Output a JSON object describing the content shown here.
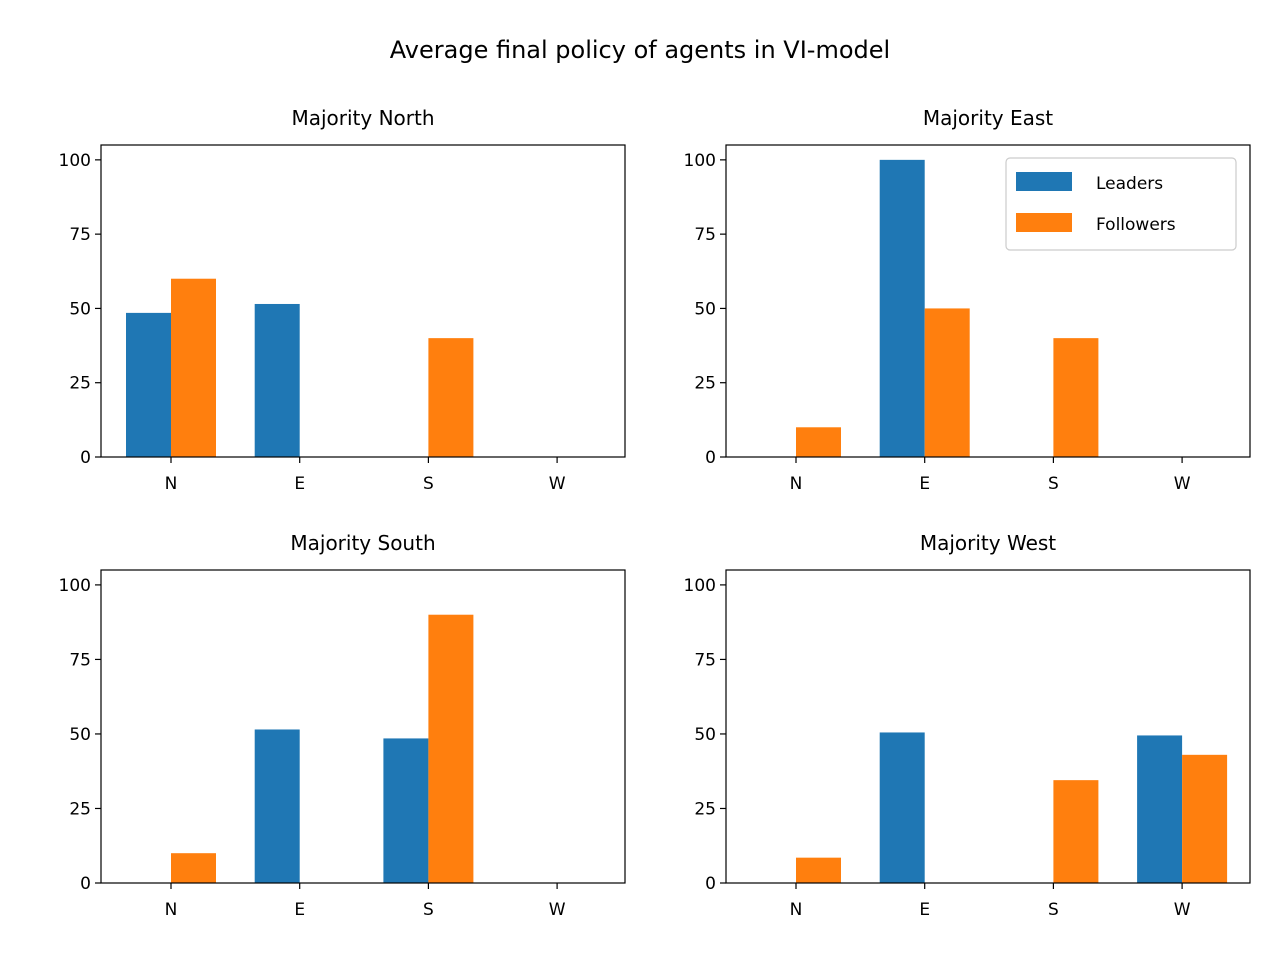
{
  "figure": {
    "title": "Average final policy of agents in VI-model"
  },
  "colors": {
    "Leaders": "#1f77b4",
    "Followers": "#ff7f0e",
    "axes": "#000000",
    "background": "#ffffff"
  },
  "chart_data": [
    {
      "type": "bar",
      "title": "Majority North",
      "categories": [
        "N",
        "E",
        "S",
        "W"
      ],
      "ylim": [
        0,
        105
      ],
      "yticks": [
        0,
        25,
        50,
        75,
        100
      ],
      "xlabel": "",
      "ylabel": "",
      "grid": false,
      "legend": null,
      "series": [
        {
          "name": "Leaders",
          "values": [
            48.5,
            51.5,
            0,
            0
          ]
        },
        {
          "name": "Followers",
          "values": [
            60,
            0,
            40,
            0
          ]
        }
      ]
    },
    {
      "type": "bar",
      "title": "Majority East",
      "categories": [
        "N",
        "E",
        "S",
        "W"
      ],
      "ylim": [
        0,
        105
      ],
      "yticks": [
        0,
        25,
        50,
        75,
        100
      ],
      "xlabel": "",
      "ylabel": "",
      "grid": false,
      "legend": "upper right",
      "series": [
        {
          "name": "Leaders",
          "values": [
            0,
            100,
            0,
            0
          ]
        },
        {
          "name": "Followers",
          "values": [
            10,
            50,
            40,
            0
          ]
        }
      ]
    },
    {
      "type": "bar",
      "title": "Majority South",
      "categories": [
        "N",
        "E",
        "S",
        "W"
      ],
      "ylim": [
        0,
        105
      ],
      "yticks": [
        0,
        25,
        50,
        75,
        100
      ],
      "xlabel": "",
      "ylabel": "",
      "grid": false,
      "legend": null,
      "series": [
        {
          "name": "Leaders",
          "values": [
            0,
            51.5,
            48.5,
            0
          ]
        },
        {
          "name": "Followers",
          "values": [
            10,
            0,
            90,
            0
          ]
        }
      ]
    },
    {
      "type": "bar",
      "title": "Majority West",
      "categories": [
        "N",
        "E",
        "S",
        "W"
      ],
      "ylim": [
        0,
        105
      ],
      "yticks": [
        0,
        25,
        50,
        75,
        100
      ],
      "xlabel": "",
      "ylabel": "",
      "grid": false,
      "legend": null,
      "series": [
        {
          "name": "Leaders",
          "values": [
            0,
            50.5,
            0,
            49.5
          ]
        },
        {
          "name": "Followers",
          "values": [
            8.5,
            0,
            34.5,
            43
          ]
        }
      ]
    }
  ]
}
